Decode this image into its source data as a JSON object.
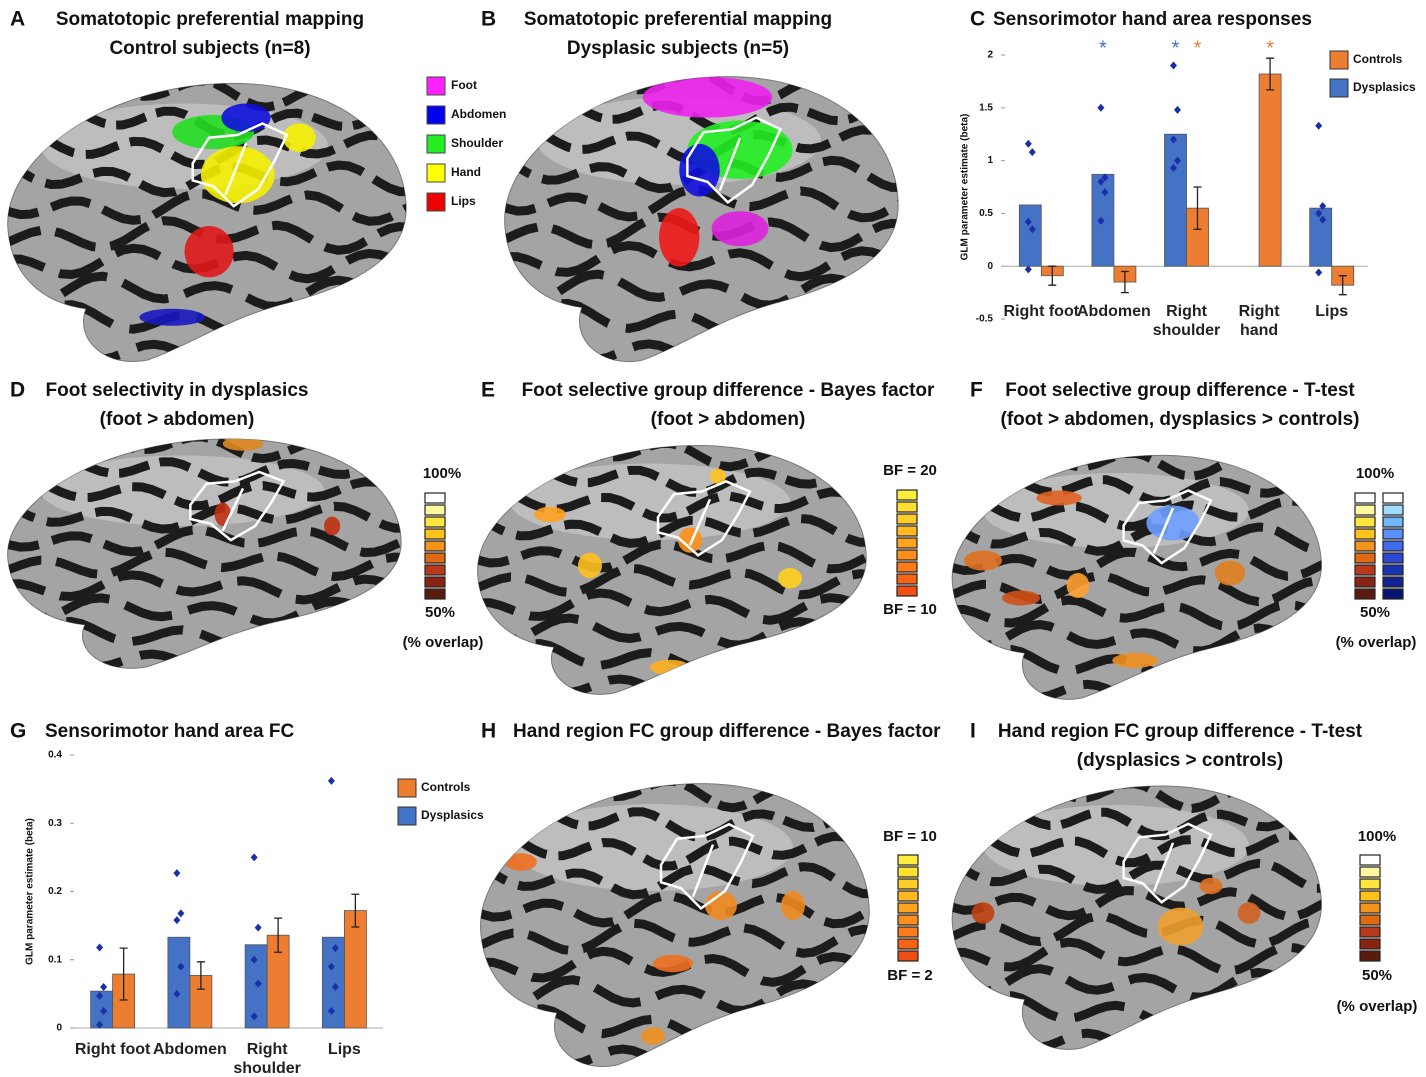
{
  "panels": [
    {
      "letter": "A",
      "title": [
        "Somatotopic preferential mapping",
        "Control subjects (n=8)"
      ],
      "legend": [
        "Foot",
        "Abdomen",
        "Shoulder",
        "Hand",
        "Lips"
      ]
    },
    {
      "letter": "B",
      "title": [
        "Somatotopic preferential mapping",
        "Dysplasic subjects (n=5)"
      ]
    },
    {
      "letter": "D",
      "title": [
        "Foot selectivity in dysplasics",
        "(foot > abdomen)"
      ],
      "scale": {
        "top": "100%",
        "bottom": "50%",
        "caption": "(% overlap)"
      }
    },
    {
      "letter": "E",
      "title": [
        "Foot selective group difference - Bayes factor",
        "(foot > abdomen)"
      ],
      "scale": {
        "top": "BF = 20",
        "bottom": "BF = 10"
      }
    },
    {
      "letter": "F",
      "title": [
        "Foot selective group difference - T-test",
        "(foot > abdomen, dysplasics > controls)"
      ],
      "scale": {
        "top": "100%",
        "bottom": "50%",
        "caption": "(% overlap)"
      }
    },
    {
      "letter": "H",
      "title": [
        "Hand region FC group difference - Bayes factor"
      ],
      "scale": {
        "top": "BF = 10",
        "bottom": "BF = 2"
      }
    },
    {
      "letter": "I",
      "title": [
        "Hand region FC group difference - T-test",
        "(dysplasics > controls)"
      ],
      "scale": {
        "top": "100%",
        "bottom": "50%",
        "caption": "(% overlap)"
      }
    }
  ],
  "chart_data": [
    {
      "type": "bar",
      "letter": "C",
      "title": "Sensorimotor hand area responses",
      "y_label": "GLM parameter estimate (beta)",
      "categories": [
        "Right foot",
        "Abdomen",
        "Right shoulder",
        "Right hand",
        "Lips"
      ],
      "series": [
        {
          "name": "Controls",
          "color": "#ed7d31",
          "values": [
            -0.09,
            -0.15,
            0.55,
            1.82,
            -0.18
          ],
          "errors": [
            0.09,
            0.1,
            0.2,
            0.15,
            0.09
          ],
          "markers": [
            null,
            null,
            "*",
            "*",
            null
          ]
        },
        {
          "name": "Dysplasics",
          "color": "#4472c4",
          "values": [
            0.58,
            0.87,
            1.25,
            null,
            0.55
          ],
          "markers": [
            null,
            "*",
            "*",
            null,
            null
          ],
          "points": [
            [
              1.16,
              1.08,
              0.42,
              0.35,
              -0.03
            ],
            [
              1.5,
              0.84,
              0.8,
              0.7,
              0.43
            ],
            [
              1.9,
              1.48,
              1.2,
              1.0,
              0.93
            ],
            [],
            [
              1.33,
              0.57,
              0.5,
              0.44,
              -0.06
            ]
          ]
        }
      ],
      "ylim": [
        -0.5,
        2
      ],
      "yticks": [
        -0.5,
        0,
        0.5,
        1,
        1.5,
        2
      ]
    },
    {
      "type": "bar",
      "letter": "G",
      "title": "Sensorimotor hand area FC",
      "y_label": "GLM parameter estimate (beta)",
      "categories": [
        "Right foot",
        "Abdomen",
        "Right shoulder",
        "Lips"
      ],
      "series": [
        {
          "name": "Controls",
          "color": "#ed7d31",
          "values": [
            0.079,
            0.077,
            0.136,
            0.172
          ],
          "errors": [
            0.038,
            0.02,
            0.025,
            0.024
          ]
        },
        {
          "name": "Dysplasics",
          "color": "#4472c4",
          "values": [
            0.054,
            0.133,
            0.122,
            0.133
          ],
          "points": [
            [
              0.118,
              0.06,
              0.047,
              0.025,
              0.005
            ],
            [
              0.227,
              0.168,
              0.158,
              0.09,
              0.05
            ],
            [
              0.25,
              0.147,
              0.1,
              0.065,
              0.017
            ],
            [
              0.362,
              0.117,
              0.09,
              0.06,
              0.025
            ]
          ]
        }
      ],
      "ylim": [
        0,
        0.4
      ],
      "yticks": [
        0,
        0.1,
        0.2,
        0.3,
        0.4
      ]
    }
  ]
}
